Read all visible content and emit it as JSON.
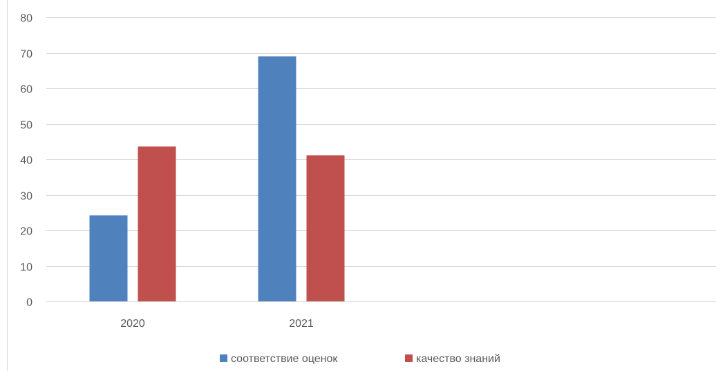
{
  "chart_data": {
    "type": "bar",
    "categories": [
      "2020",
      "2021"
    ],
    "series": [
      {
        "name": "соответствие оценок",
        "values": [
          24.2,
          69.0
        ],
        "color": "#4f81bd"
      },
      {
        "name": "качество знаний",
        "values": [
          43.6,
          41.1
        ],
        "color": "#c0504d"
      }
    ],
    "ylim": [
      0,
      80
    ],
    "yticks": [
      "0",
      "10",
      "20",
      "30",
      "40",
      "50",
      "60",
      "70",
      "80"
    ],
    "grid": true,
    "legend_position": "bottom"
  }
}
